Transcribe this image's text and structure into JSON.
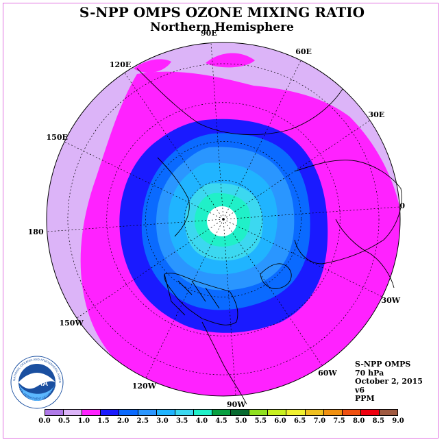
{
  "title": "S-NPP OMPS OZONE MIXING RATIO",
  "subtitle": "Northern Hemisphere",
  "longitude_labels": [
    "90E",
    "60E",
    "30E",
    "0",
    "30W",
    "60W",
    "90W",
    "120W",
    "150W",
    "180",
    "150E",
    "120E"
  ],
  "info": {
    "instrument": "S-NPP OMPS",
    "pressure": "70 hPa",
    "date": "October 2, 2015",
    "version": "v6",
    "units": "PPM"
  },
  "logo": {
    "name": "NOAA",
    "ring_text": "NATIONAL OCEANIC AND ATMOSPHERIC ADMINISTRATION",
    "bottom_text": "U.S. DEPARTMENT OF COMMERCE"
  },
  "colorbar": {
    "ticks": [
      "0.0",
      "0.5",
      "1.0",
      "1.5",
      "2.0",
      "2.5",
      "3.0",
      "3.5",
      "4.0",
      "4.5",
      "5.0",
      "5.5",
      "6.0",
      "6.5",
      "7.0",
      "7.5",
      "8.0",
      "8.5",
      "9.0"
    ],
    "colors": [
      "#b07ae8",
      "#dcb4f8",
      "#ff22ff",
      "#1a1aff",
      "#0a6aff",
      "#2a96ff",
      "#20b4ff",
      "#3cd8f0",
      "#20f0c8",
      "#08a040",
      "#086a30",
      "#90e020",
      "#c8f020",
      "#f0f030",
      "#f0c020",
      "#f09010",
      "#f05010",
      "#f00010",
      "#a05a40"
    ]
  },
  "colors": {
    "level_0_5_1_0": "#dcb4f8",
    "level_1_0_1_5": "#ff22ff",
    "level_1_5_2_0": "#1a1aff",
    "level_2_0_2_5": "#0a6aff",
    "level_2_5_3_0": "#2a96ff",
    "level_3_0_3_5": "#20b4ff",
    "level_3_5_4_0": "#3cd8f0",
    "level_4_0_4_5": "#20f0c8",
    "no_data": "#ffffff"
  }
}
